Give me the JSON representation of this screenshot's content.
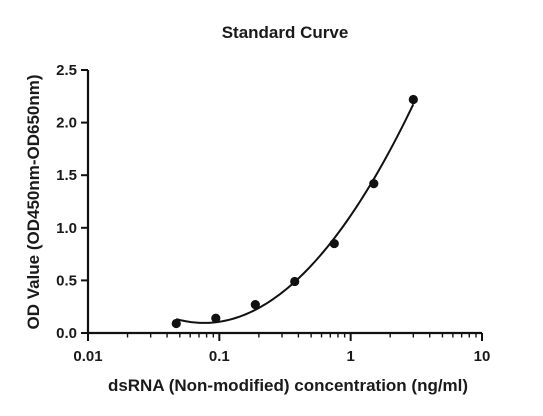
{
  "chart_data": {
    "type": "scatter",
    "title": "Standard Curve",
    "xlabel": "dsRNA (Non-modified) concentration (ng/ml)",
    "ylabel": "OD Value (OD450nm-OD650nm)",
    "x_scale": "log",
    "xlim": [
      0.01,
      10
    ],
    "ylim": [
      0,
      2.5
    ],
    "x_ticks": [
      {
        "value": 0.01,
        "label": "0.01"
      },
      {
        "value": 0.1,
        "label": "0.1"
      },
      {
        "value": 1,
        "label": "1"
      },
      {
        "value": 10,
        "label": "10"
      }
    ],
    "y_ticks": [
      {
        "value": 0,
        "label": "0.0"
      },
      {
        "value": 0.5,
        "label": "0.5"
      },
      {
        "value": 1,
        "label": "1.0"
      },
      {
        "value": 1.5,
        "label": "1.5"
      },
      {
        "value": 2,
        "label": "2.0"
      },
      {
        "value": 2.5,
        "label": "2.5"
      }
    ],
    "grid": false,
    "series": [
      {
        "x": [
          0.047,
          0.094,
          0.188,
          0.375,
          0.75,
          1.5,
          3.0
        ],
        "y": [
          0.09,
          0.14,
          0.27,
          0.49,
          0.85,
          1.42,
          2.22
        ],
        "fit": "smooth curve"
      }
    ],
    "colors": {
      "marker": "#111111",
      "line": "#111111",
      "axis": "#111111"
    }
  }
}
